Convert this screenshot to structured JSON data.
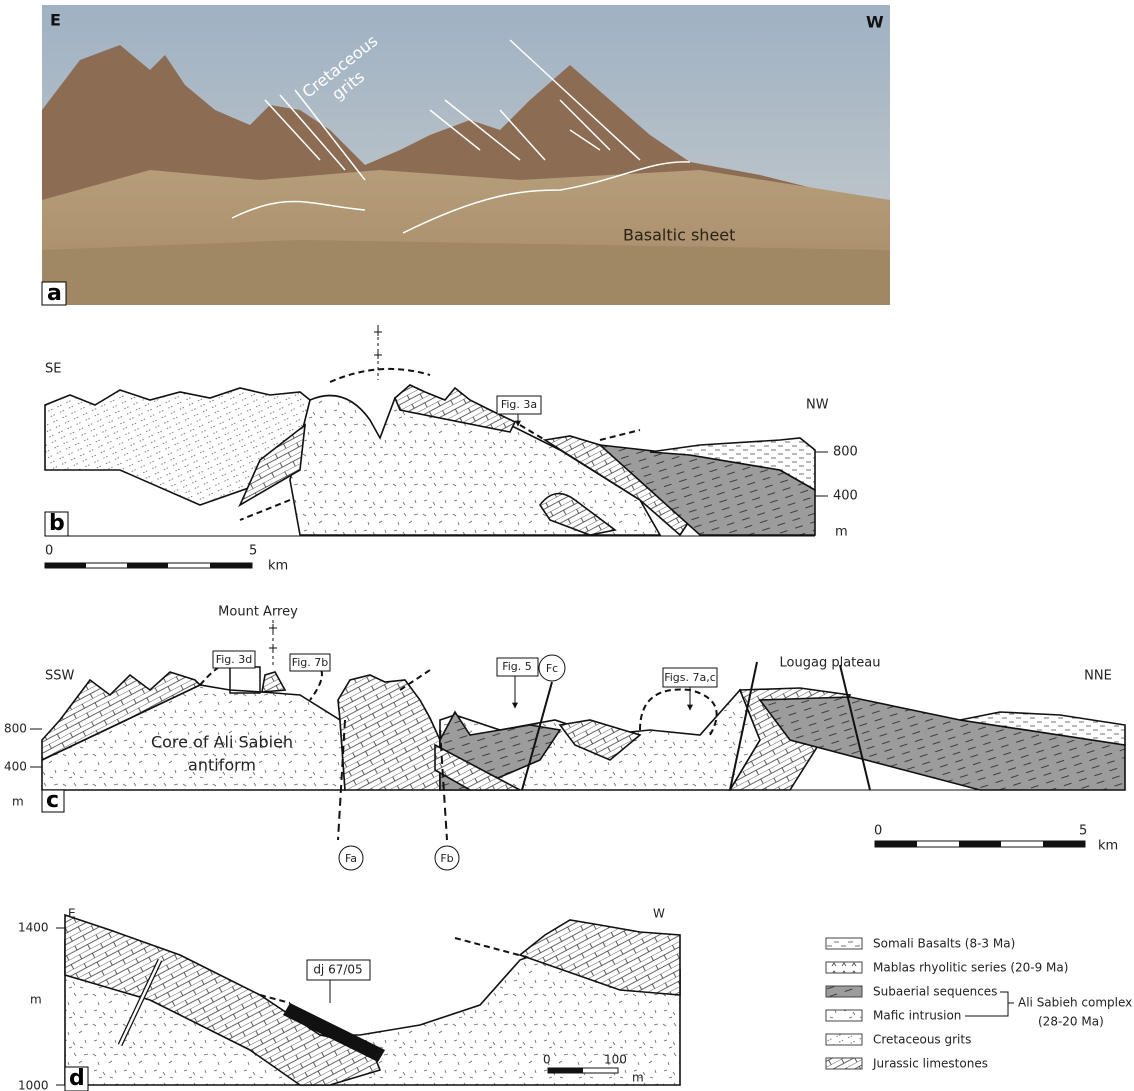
{
  "panel_a": {
    "label": "a",
    "left": "E",
    "right": "W",
    "grits_label": [
      "Cretaceous",
      "grits"
    ],
    "basalt_label": "Basaltic sheet"
  },
  "panel_b": {
    "label": "b",
    "left": "SE",
    "right": "NW",
    "callout": "Fig. 3a",
    "elevations": [
      "800",
      "400"
    ],
    "unit": "m",
    "scale": {
      "start": "0",
      "end": "5",
      "unit": "km"
    }
  },
  "panel_c": {
    "label": "c",
    "title": "Mount Arrey",
    "left": "SSW",
    "right": "NNE",
    "plateau": "Lougag plateau",
    "callouts": [
      "Fig. 3d",
      "Fig. 7b",
      "Fig. 5",
      "Figs. 7a,c"
    ],
    "faults": [
      "Fa",
      "Fb",
      "Fc"
    ],
    "core": [
      "Core of Ali Sabieh",
      "antiform"
    ],
    "elevations": [
      "800",
      "400"
    ],
    "unit": "m",
    "scale": {
      "start": "0",
      "end": "5",
      "unit": "km"
    }
  },
  "panel_d": {
    "label": "d",
    "left": "E",
    "right": "W",
    "elevations": [
      "1400",
      "1000"
    ],
    "unit": "m",
    "callout": "dj 67/05",
    "scale": {
      "start": "0",
      "end": "100",
      "unit": "m"
    }
  },
  "legend": {
    "items": [
      "Somali Basalts (8-3 Ma)",
      "Mablas rhyolitic series (20-9 Ma)",
      "Subaerial sequences",
      "Mafic intrusion",
      "Cretaceous grits",
      "Jurassic limestones"
    ],
    "group": "Ali Sabieh complex",
    "group_age": "(28-20 Ma)"
  }
}
